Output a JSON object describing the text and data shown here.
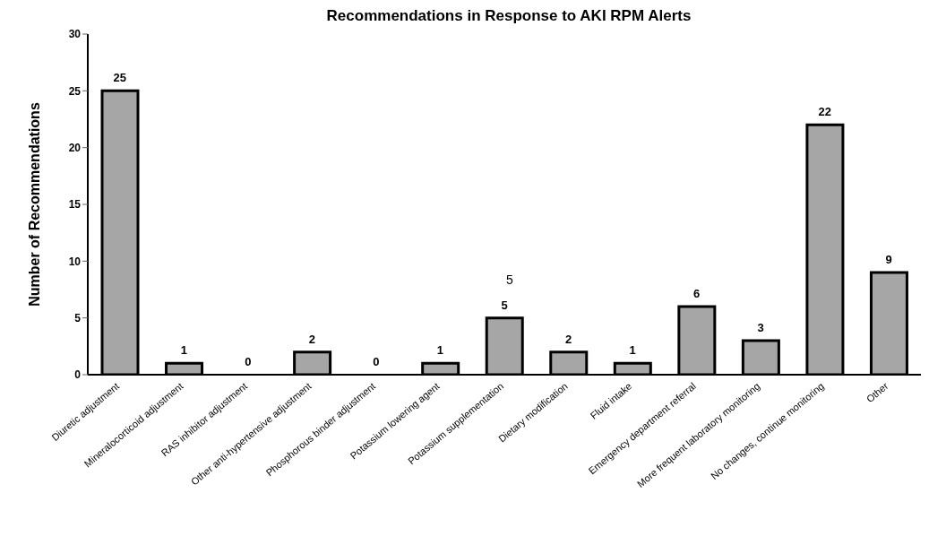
{
  "chart_data": {
    "type": "bar",
    "title": "Recommendations in Response to AKI RPM Alerts",
    "ylabel": "Number of Recommendations",
    "categories": [
      "Diuretic adjustment",
      "Mineralocorticoid adjustment",
      "RAS inhibitor adjustment",
      "Other anti-hypertensive adjustment",
      "Phosphorous binder adjustment",
      "Potassium lowering agent",
      "Potassium supplementation",
      "Dietary modification",
      "Fluid intake",
      "Emergency department referral",
      "More frequent laboratory monitoring",
      "No changes, continue monitoring",
      "Other"
    ],
    "values": [
      25,
      1,
      0,
      2,
      0,
      1,
      5,
      2,
      1,
      6,
      3,
      22,
      9
    ],
    "color": "#a6a6a6",
    "ylim": [
      0,
      30
    ],
    "yticks": [
      0,
      5,
      10,
      15,
      20,
      25,
      30
    ],
    "data_labels": true,
    "annotations": [
      "5"
    ]
  }
}
